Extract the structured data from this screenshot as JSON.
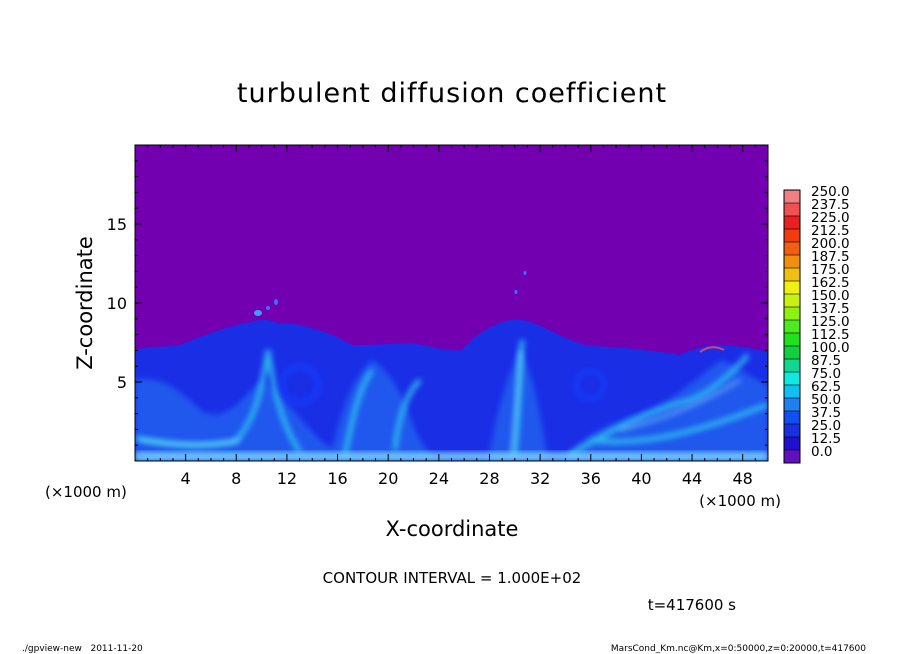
{
  "chart_data": {
    "type": "heatmap",
    "title": "turbulent diffusion coefficient",
    "xlabel": "X-coordinate",
    "ylabel": "Z-coordinate",
    "x_unit": "(×1000 m)",
    "y_unit": "(×1000 m)",
    "xlim": [
      0,
      50
    ],
    "ylim": [
      0,
      20
    ],
    "x_ticks": [
      4,
      8,
      12,
      16,
      20,
      24,
      28,
      32,
      36,
      40,
      44,
      48
    ],
    "y_ticks": [
      5,
      10,
      15
    ],
    "colorbar": {
      "levels": [
        "250.0",
        "237.5",
        "225.0",
        "212.5",
        "200.0",
        "187.5",
        "175.0",
        "162.5",
        "150.0",
        "137.5",
        "125.0",
        "112.5",
        "100.0",
        "87.5",
        "75.0",
        "62.5",
        "50.0",
        "37.5",
        "25.0",
        "12.5",
        "0.0"
      ],
      "colors": [
        "#f08080",
        "#f05050",
        "#e82020",
        "#f03c10",
        "#f06010",
        "#f09010",
        "#f0c010",
        "#f0f010",
        "#c8f010",
        "#90f010",
        "#50e820",
        "#20e020",
        "#10d040",
        "#10d890",
        "#10e8e0",
        "#10c0f0",
        "#2080f0",
        "#1050f0",
        "#1830e0",
        "#2010d0",
        "#6010c0"
      ]
    },
    "background_color": "#7300b0",
    "annotations": {
      "contour_interval": "CONTOUR INTERVAL = 1.000E+02",
      "time": "t=417600 s"
    }
  },
  "footer": {
    "left": "./gpview-new   2011-11-20",
    "right": "MarsCond_Km.nc@Km,x=0:50000,z=0:20000,t=417600"
  }
}
